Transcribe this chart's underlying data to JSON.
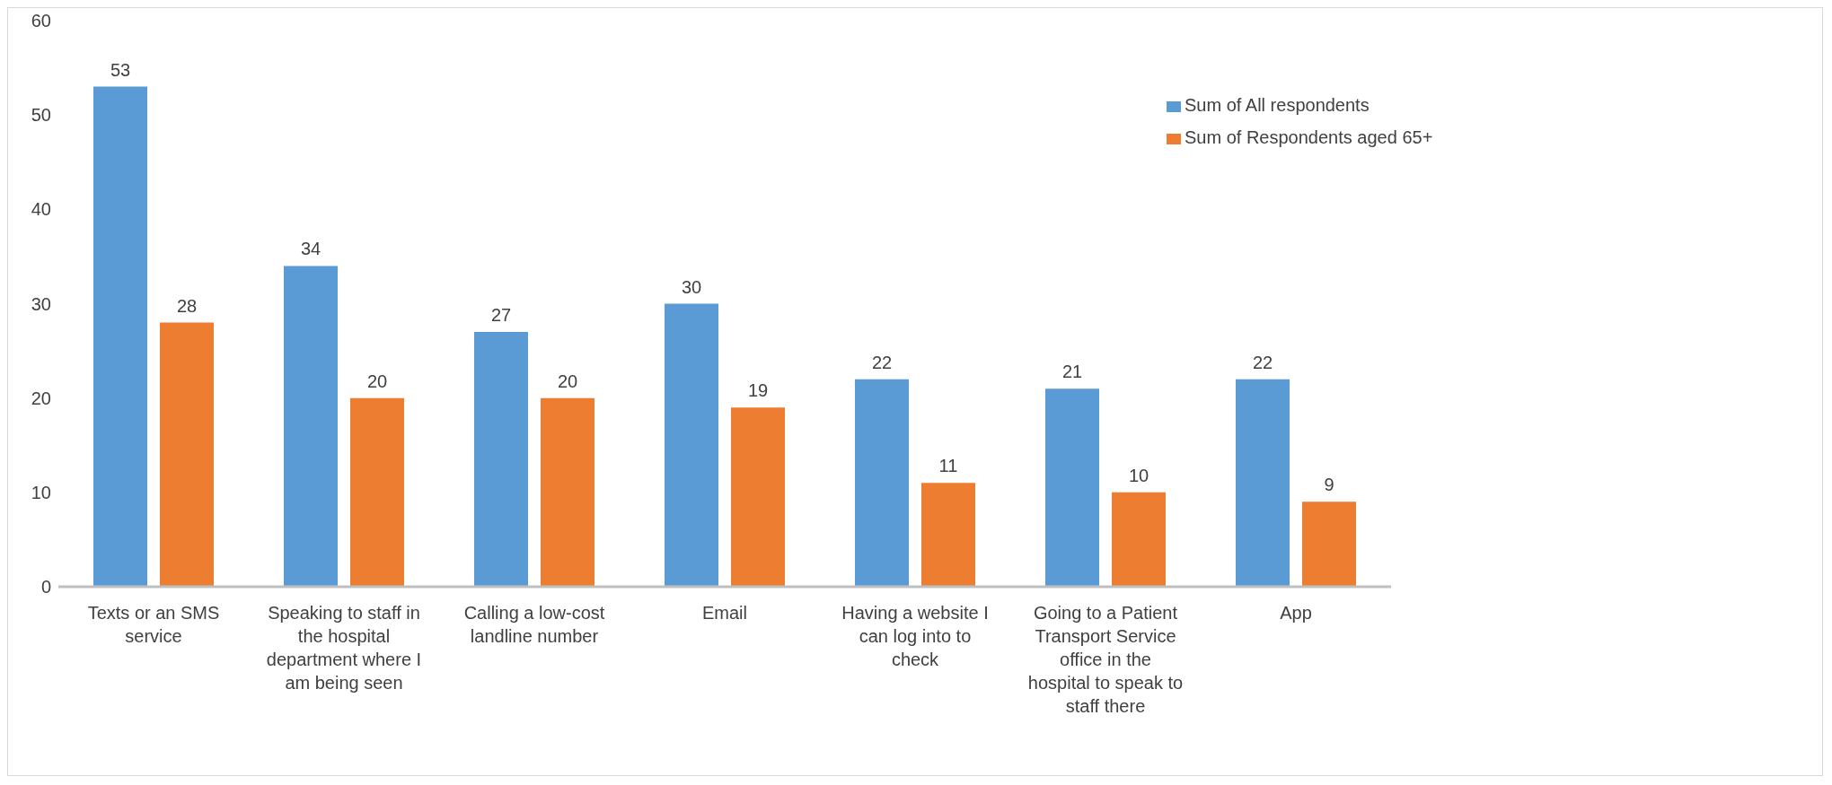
{
  "chart_data": {
    "type": "bar",
    "categories": [
      "Texts or an SMS service",
      "Speaking to staff in the hospital department where I am being seen",
      "Calling a low-cost landline number",
      "Email",
      "Having a website I can log into to check",
      "Going to a Patient Transport Service office in the hospital to speak to staff there",
      "App"
    ],
    "series": [
      {
        "name": "Sum of All respondents",
        "color": "#5b9bd5",
        "values": [
          53,
          34,
          27,
          30,
          22,
          21,
          22
        ]
      },
      {
        "name": "Sum of Respondents aged 65+",
        "color": "#ed7d31",
        "values": [
          28,
          20,
          20,
          19,
          11,
          10,
          9
        ]
      }
    ],
    "ylim": [
      0,
      60
    ],
    "yticks": [
      0,
      10,
      20,
      30,
      40,
      50,
      60
    ],
    "grid": false,
    "legend": "top right",
    "data_labels": true
  }
}
